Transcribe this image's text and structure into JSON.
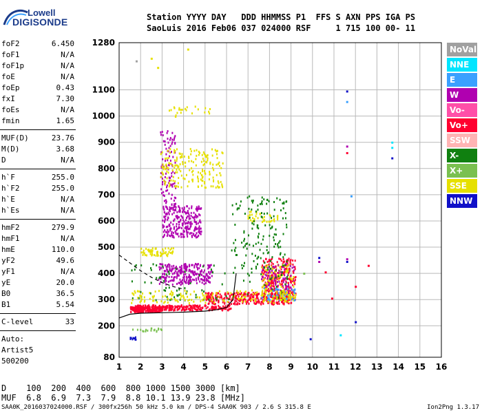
{
  "logo": {
    "line1": "Lowell",
    "line2": "DIGISONDE"
  },
  "header": {
    "line1": "Station YYYY DAY   DDD HHMMSS P1  FFS S AXN PPS IGA PS",
    "line2": "SaoLuis 2016 Feb06 037 024000 RSF     1 715 100 00- 11"
  },
  "params_group1": [
    {
      "name": "foF2",
      "value": "6.450"
    },
    {
      "name": "foF1",
      "value": "N/A"
    },
    {
      "name": "foF1p",
      "value": "N/A"
    },
    {
      "name": "foE",
      "value": "N/A"
    },
    {
      "name": "foEp",
      "value": "0.43"
    },
    {
      "name": "fxI",
      "value": "7.30"
    },
    {
      "name": "foEs",
      "value": "N/A"
    },
    {
      "name": "fmin",
      "value": "1.65"
    }
  ],
  "params_group2": [
    {
      "name": "MUF(D)",
      "value": "23.76"
    },
    {
      "name": "M(D)",
      "value": "3.68"
    },
    {
      "name": "D",
      "value": "N/A"
    }
  ],
  "params_group3": [
    {
      "name": "h`F",
      "value": "255.0"
    },
    {
      "name": "h`F2",
      "value": "255.0"
    },
    {
      "name": "h`E",
      "value": "N/A"
    },
    {
      "name": "h`Es",
      "value": "N/A"
    }
  ],
  "params_group4": [
    {
      "name": "hmF2",
      "value": "279.9"
    },
    {
      "name": "hmF1",
      "value": "N/A"
    },
    {
      "name": "hmE",
      "value": "110.0"
    },
    {
      "name": "yF2",
      "value": "49.6"
    },
    {
      "name": "yF1",
      "value": "N/A"
    },
    {
      "name": "yE",
      "value": "20.0"
    },
    {
      "name": "B0",
      "value": "36.5"
    },
    {
      "name": "B1",
      "value": "5.54"
    }
  ],
  "params_group5": [
    {
      "name": "C-level",
      "value": "33"
    }
  ],
  "autoscale": {
    "line1": "Auto:",
    "line2": "Artist5",
    "line3": "500200"
  },
  "legend": [
    {
      "label": "NoVal",
      "color": "#a0a0a0"
    },
    {
      "label": "NNE",
      "color": "#00e5ff"
    },
    {
      "label": "E",
      "color": "#3aa0ff"
    },
    {
      "label": "W",
      "color": "#b000b0"
    },
    {
      "label": "Vo-",
      "color": "#ff4fa8"
    },
    {
      "label": "Vo+",
      "color": "#ff0030"
    },
    {
      "label": "SSW",
      "color": "#ffb4b4"
    },
    {
      "label": "X-",
      "color": "#108010"
    },
    {
      "label": "X+",
      "color": "#7ac050"
    },
    {
      "label": "SSE",
      "color": "#e6e000"
    },
    {
      "label": "NNW",
      "color": "#1010c8"
    }
  ],
  "bottom": {
    "d_line": "D    100  200  400  600  800 1000 1500 3000 [km]",
    "muf_line": "MUF  6.8  6.9  7.3  7.9  8.8 10.1 13.9 23.8 [MHz]"
  },
  "footer": "SAA0K_2016037024000.RSF / 300fx256h 50 kHz 5.0 km / DPS-4 SAA0K 903 / 2.6 S 315.8 E",
  "version": "Ion2Png 1.3.17",
  "chart_data": {
    "type": "scatter",
    "xlabel": "",
    "ylabel": "",
    "xlim": [
      1,
      16
    ],
    "ylim": [
      80,
      1280
    ],
    "x_ticks": [
      "1",
      "2",
      "3",
      "4",
      "5",
      "6",
      "7",
      "8",
      "9",
      "10",
      "11",
      "12",
      "13",
      "14",
      "15",
      "16"
    ],
    "y_ticks": [
      "80",
      "200",
      "300",
      "400",
      "500",
      "600",
      "700",
      "800",
      "900",
      "1000",
      "1100",
      "1280"
    ],
    "profile_curve": {
      "x": [
        1.0,
        1.5,
        2.0,
        3.0,
        4.0,
        5.0,
        5.6,
        6.0,
        6.3,
        6.45
      ],
      "y": [
        230,
        244,
        248,
        250,
        252,
        256,
        262,
        270,
        300,
        400
      ]
    },
    "dashed_curve": {
      "x": [
        1.0,
        1.5,
        2.0,
        2.5,
        3.0,
        3.5,
        4.0
      ],
      "y": [
        470,
        440,
        410,
        385,
        365,
        350,
        340
      ]
    },
    "clusters": [
      {
        "x": [
          1.5,
          3.0
        ],
        "y": [
          255,
          275
        ],
        "color": "#ff0030",
        "count": 220
      },
      {
        "x": [
          1.6,
          6.2
        ],
        "y": [
          262,
          282
        ],
        "color": "#ff0030",
        "count": 260
      },
      {
        "x": [
          5.0,
          9.0
        ],
        "y": [
          285,
          330
        ],
        "color": "#ff0030",
        "count": 320
      },
      {
        "x": [
          7.6,
          9.2
        ],
        "y": [
          300,
          460
        ],
        "color": "#ff0030",
        "count": 260
      },
      {
        "x": [
          7.6,
          9.2
        ],
        "y": [
          300,
          440
        ],
        "color": "#e6e000",
        "count": 120
      },
      {
        "x": [
          7.6,
          9.2
        ],
        "y": [
          330,
          440
        ],
        "color": "#b000b0",
        "count": 80
      },
      {
        "x": [
          7.6,
          9.2
        ],
        "y": [
          300,
          350
        ],
        "color": "#3aa0ff",
        "count": 40
      },
      {
        "x": [
          2.8,
          5.3
        ],
        "y": [
          360,
          440
        ],
        "color": "#b000b0",
        "count": 260
      },
      {
        "x": [
          3.0,
          4.8
        ],
        "y": [
          540,
          660
        ],
        "color": "#b000b0",
        "count": 260
      },
      {
        "x": [
          2.9,
          3.6
        ],
        "y": [
          650,
          950
        ],
        "color": "#b000b0",
        "count": 110
      },
      {
        "x": [
          2.9,
          5.8
        ],
        "y": [
          730,
          880
        ],
        "color": "#e6e000",
        "count": 200
      },
      {
        "x": [
          3.3,
          5.2
        ],
        "y": [
          1000,
          1040
        ],
        "color": "#e6e000",
        "count": 25
      },
      {
        "x": [
          2.0,
          3.5
        ],
        "y": [
          470,
          500
        ],
        "color": "#e6e000",
        "count": 60
      },
      {
        "x": [
          6.9,
          8.4
        ],
        "y": [
          600,
          640
        ],
        "color": "#e6e000",
        "count": 40
      },
      {
        "x": [
          6.2,
          8.8
        ],
        "y": [
          420,
          700
        ],
        "color": "#108010",
        "count": 140
      },
      {
        "x": [
          1.5,
          9.0
        ],
        "y": [
          300,
          440
        ],
        "color": "#108010",
        "count": 100
      },
      {
        "x": [
          1.5,
          9.0
        ],
        "y": [
          290,
          340
        ],
        "color": "#e6e000",
        "count": 160
      },
      {
        "x": [
          1.5,
          3.0
        ],
        "y": [
          180,
          195
        ],
        "color": "#7ac050",
        "count": 20
      },
      {
        "x": [
          1.4,
          1.8
        ],
        "y": [
          150,
          160
        ],
        "color": "#1010c8",
        "count": 10
      }
    ],
    "isolated_points": [
      {
        "x": 11.6,
        "y": 1095,
        "color": "#1010c8"
      },
      {
        "x": 11.6,
        "y": 1055,
        "color": "#3aa0ff"
      },
      {
        "x": 11.6,
        "y": 885,
        "color": "#b000b0"
      },
      {
        "x": 11.6,
        "y": 860,
        "color": "#ff0030"
      },
      {
        "x": 13.7,
        "y": 900,
        "color": "#00e5ff"
      },
      {
        "x": 13.7,
        "y": 880,
        "color": "#00e5ff"
      },
      {
        "x": 13.7,
        "y": 840,
        "color": "#1010c8"
      },
      {
        "x": 11.8,
        "y": 695,
        "color": "#3aa0ff"
      },
      {
        "x": 11.6,
        "y": 455,
        "color": "#b000b0"
      },
      {
        "x": 11.6,
        "y": 445,
        "color": "#1010c8"
      },
      {
        "x": 12.0,
        "y": 350,
        "color": "#ff0030"
      },
      {
        "x": 12.0,
        "y": 215,
        "color": "#1010c8"
      },
      {
        "x": 11.3,
        "y": 165,
        "color": "#00e5ff"
      },
      {
        "x": 10.3,
        "y": 460,
        "color": "#1010c8"
      },
      {
        "x": 10.3,
        "y": 445,
        "color": "#b000b0"
      },
      {
        "x": 10.9,
        "y": 305,
        "color": "#ff0030"
      },
      {
        "x": 10.6,
        "y": 405,
        "color": "#ff0030"
      },
      {
        "x": 9.6,
        "y": 400,
        "color": "#7ac050"
      },
      {
        "x": 9.9,
        "y": 150,
        "color": "#1010c8"
      },
      {
        "x": 2.8,
        "y": 1185,
        "color": "#e6e000"
      },
      {
        "x": 2.5,
        "y": 1220,
        "color": "#e6e000"
      },
      {
        "x": 4.2,
        "y": 1255,
        "color": "#e6e000"
      },
      {
        "x": 1.8,
        "y": 1210,
        "color": "#a0a0a0"
      },
      {
        "x": 12.6,
        "y": 430,
        "color": "#ff0030"
      }
    ]
  }
}
